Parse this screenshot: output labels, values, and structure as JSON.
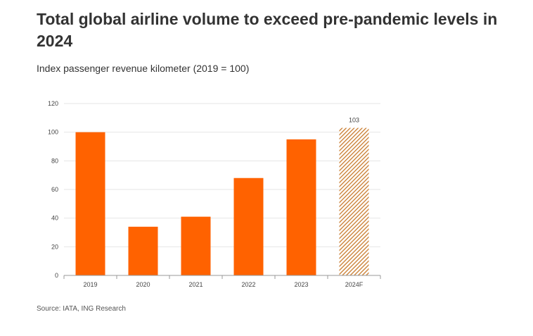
{
  "title": "Total global airline volume to exceed pre-pandemic levels in 2024",
  "subtitle": "Index passenger revenue kilometer (2019 = 100)",
  "source": "Source: IATA, ING Research",
  "colors": {
    "bar": "#FF6200",
    "forecast": "#C87A2C",
    "grid": "#e6e6e6",
    "axis": "#999999"
  },
  "chart_data": {
    "type": "bar",
    "title": "Total global airline volume to exceed pre-pandemic levels in 2024",
    "subtitle": "Index passenger revenue kilometer (2019 = 100)",
    "xlabel": "",
    "ylabel": "",
    "categories": [
      "2019",
      "2020",
      "2021",
      "2022",
      "2023",
      "2024F"
    ],
    "values": [
      100,
      34,
      41,
      68,
      95,
      103
    ],
    "forecast": [
      false,
      false,
      false,
      false,
      false,
      true
    ],
    "data_labels": [
      null,
      null,
      null,
      null,
      null,
      "103"
    ],
    "ylim": [
      0,
      120
    ],
    "yticks": [
      0,
      20,
      40,
      60,
      80,
      100,
      120
    ],
    "grid": true,
    "legend": "none"
  }
}
